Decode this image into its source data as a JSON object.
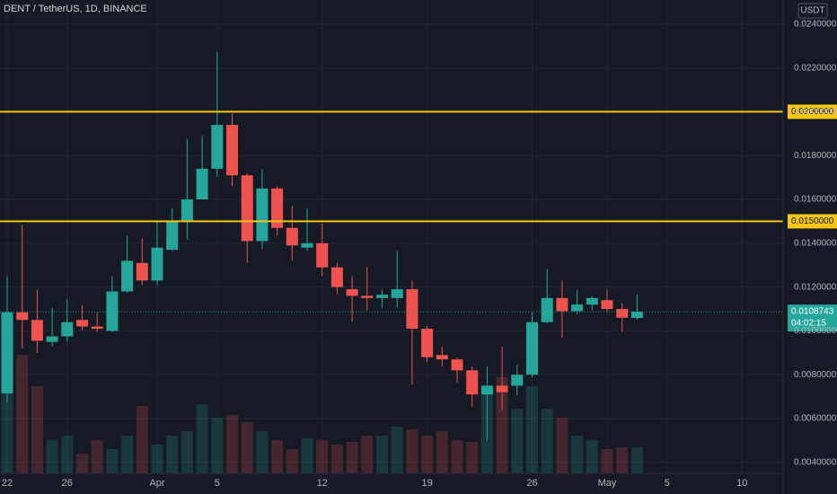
{
  "chart_data": {
    "type": "candlestick",
    "title": "DENT / TetherUS, 1D, BINANCE",
    "currency": "USDT",
    "up_color": "#26a69a",
    "down_color": "#ef5350",
    "grid": true,
    "categories": [
      "22",
      null,
      null,
      null,
      "26",
      null,
      null,
      null,
      null,
      null,
      "Apr",
      null,
      null,
      null,
      "5",
      null,
      null,
      null,
      null,
      null,
      null,
      "12",
      null,
      null,
      null,
      null,
      null,
      null,
      "19",
      null,
      null,
      null,
      null,
      null,
      null,
      "26",
      null,
      null,
      null,
      null,
      "May",
      null,
      null,
      null,
      "5",
      null,
      null,
      null,
      null,
      "10"
    ],
    "open": [
      0.00715,
      0.01085,
      0.0105,
      0.0095,
      0.00975,
      0.0105,
      0.0102,
      0.01,
      0.0118,
      0.0131,
      0.0123,
      0.0137,
      0.015,
      0.016,
      0.0174,
      0.0194,
      0.0171,
      0.0141,
      0.0165,
      0.0147,
      0.0138,
      0.014,
      0.0129,
      0.0119,
      0.0116,
      0.0115,
      0.0115,
      0.0119,
      0.0101,
      0.0089,
      0.0087,
      0.0082,
      0.0071,
      0.0075,
      0.0075,
      0.008,
      0.0104,
      0.0115,
      0.0109,
      0.0112,
      0.0114,
      0.011,
      0.01059,
      null,
      null,
      null,
      null,
      null,
      null,
      null
    ],
    "high": [
      0.0125,
      0.01485,
      0.01188,
      0.01105,
      0.01146,
      0.01118,
      0.01085,
      0.0125,
      0.01435,
      0.01423,
      0.01497,
      0.0156,
      0.01876,
      0.01889,
      0.02272,
      0.01992,
      0.0172,
      0.0174,
      0.0166,
      0.01571,
      0.0156,
      0.01489,
      0.01311,
      0.0125,
      0.01291,
      0.01188,
      0.01365,
      0.01229,
      0.01023,
      0.00928,
      0.00878,
      0.00837,
      0.00837,
      0.00928,
      0.00845,
      0.01085,
      0.01282,
      0.01229,
      0.01188,
      0.01159,
      0.01188,
      0.01126,
      0.01167,
      null,
      null,
      null,
      null,
      null,
      null,
      null
    ],
    "low": [
      0.00672,
      0.0092,
      0.00899,
      0.00928,
      0.00953,
      0.01002,
      0.00994,
      0.00994,
      0.01175,
      0.01208,
      0.01208,
      0.01365,
      0.01415,
      0.016,
      0.01703,
      0.0166,
      0.01311,
      0.01373,
      0.01435,
      0.0132,
      0.01365,
      0.0125,
      0.01167,
      0.01043,
      0.01093,
      0.01105,
      0.01105,
      0.00755,
      0.00858,
      0.00837,
      0.00763,
      0.00652,
      0.005,
      0.00639,
      0.00705,
      0.00788,
      0.01035,
      0.00969,
      0.01076,
      0.01093,
      0.01085,
      0.00994,
      0.0105,
      null,
      null,
      null,
      null,
      null,
      null,
      null
    ],
    "close": [
      0.01085,
      0.0105,
      0.00955,
      0.00975,
      0.0104,
      0.0102,
      0.0101,
      0.0118,
      0.0132,
      0.0123,
      0.0138,
      0.015,
      0.016,
      0.0174,
      0.0194,
      0.0171,
      0.0141,
      0.0165,
      0.0147,
      0.0139,
      0.014,
      0.0129,
      0.012,
      0.0116,
      0.0115,
      0.01165,
      0.0119,
      0.0101,
      0.0088,
      0.0087,
      0.0082,
      0.0071,
      0.0075,
      0.0072,
      0.008,
      0.0104,
      0.0115,
      0.0109,
      0.0112,
      0.0115,
      0.011,
      0.0106,
      0.0108743,
      null,
      null,
      null,
      null,
      null,
      null,
      null
    ],
    "volume": [
      132,
      132,
      97,
      37,
      42,
      22,
      37,
      27,
      42,
      75,
      32,
      42,
      47,
      77,
      62,
      65,
      57,
      47,
      37,
      27,
      39,
      37,
      32,
      35,
      42,
      42,
      52,
      49,
      42,
      47,
      37,
      35,
      97,
      107,
      72,
      97,
      72,
      62,
      42,
      37,
      27,
      29,
      29,
      null,
      null,
      null,
      null,
      null,
      null,
      null
    ],
    "ylim": [
      0.0035,
      0.0251
    ],
    "yticks": [
      {
        "value": 0.004,
        "label": "0.0040000"
      },
      {
        "value": 0.006,
        "label": "0.0060000"
      },
      {
        "value": 0.008,
        "label": "0.0080000"
      },
      {
        "value": 0.01,
        "label": "0.0100000"
      },
      {
        "value": 0.012,
        "label": "0.0120000"
      },
      {
        "value": 0.014,
        "label": "0.0140000"
      },
      {
        "value": 0.016,
        "label": "0.0160000"
      },
      {
        "value": 0.018,
        "label": "0.0180000"
      },
      {
        "value": 0.02,
        "label": "0.0200000"
      },
      {
        "value": 0.022,
        "label": "0.0220000"
      },
      {
        "value": 0.024,
        "label": "0.0240000"
      }
    ],
    "hlines": [
      {
        "value": 0.02,
        "label": "0.0200000",
        "color": "#f5c518"
      },
      {
        "value": 0.015,
        "label": "0.0150000",
        "color": "#f5c518"
      }
    ],
    "last_price": {
      "value": 0.0108743,
      "label": "0.0108743",
      "countdown": "04:02:15",
      "color": "#26a69a"
    }
  }
}
